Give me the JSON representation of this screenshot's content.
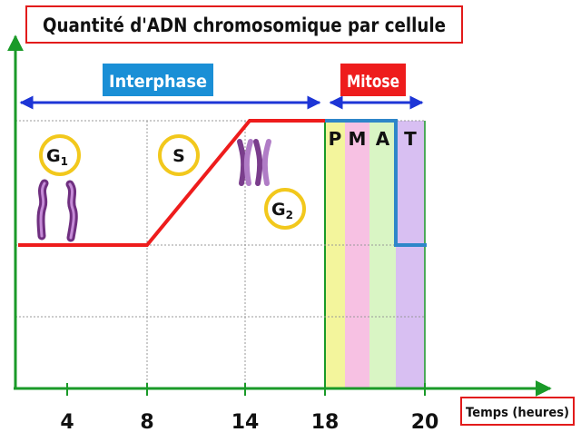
{
  "chart_data": {
    "type": "line",
    "title": "Quantité d'ADN chromosomique par cellule",
    "xlabel": "Temps (heures)",
    "ylabel": "",
    "x_ticks": [
      4,
      8,
      14,
      18,
      20
    ],
    "xlim": [
      0,
      21
    ],
    "ylim": [
      0,
      3
    ],
    "grid": true,
    "series": [
      {
        "color": "#ee1c1c",
        "x": [
          0,
          8,
          14,
          18
        ],
        "y": [
          1,
          1,
          2,
          2
        ]
      },
      {
        "color": "#2e86c9",
        "x": [
          18,
          20,
          20,
          21
        ],
        "y": [
          2,
          2,
          1,
          1
        ]
      }
    ],
    "periods": [
      {
        "label": "Interphase",
        "start": 0,
        "end": 18,
        "color": "#1a8fd6"
      },
      {
        "label": "Mitose",
        "start": 18,
        "end": 20,
        "color": "#ee1c1c"
      }
    ],
    "phases": [
      {
        "label": "G",
        "sub": "1",
        "start": 0,
        "end": 8
      },
      {
        "label": "S",
        "sub": "",
        "start": 8,
        "end": 14
      },
      {
        "label": "G",
        "sub": "2",
        "start": 14,
        "end": 18
      }
    ],
    "mitosis_phases": [
      {
        "label": "P",
        "color": "#f3f59c"
      },
      {
        "label": "M",
        "color": "#f7c1e3"
      },
      {
        "label": "A",
        "color": "#d9f5c4"
      },
      {
        "label": "T",
        "color": "#d8bff2"
      }
    ]
  }
}
